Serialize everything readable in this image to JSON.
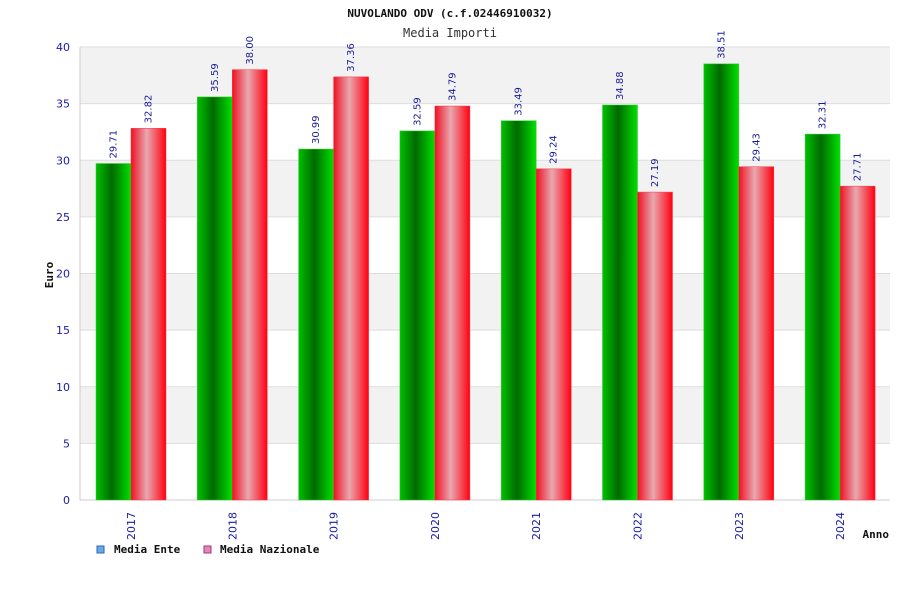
{
  "chart_data": {
    "type": "bar",
    "title": "NUVOLANDO ODV (c.f.02446910032)",
    "subtitle": "Media Importi",
    "xlabel": "Anno",
    "ylabel": "Euro",
    "ylim": [
      0,
      40
    ],
    "yticks": [
      "0",
      "5",
      "10",
      "15",
      "20",
      "25",
      "30",
      "35",
      "40"
    ],
    "grid": true,
    "legend_position": "bottom-left",
    "categories": [
      "2017",
      "2018",
      "2019",
      "2020",
      "2021",
      "2022",
      "2023",
      "2024"
    ],
    "series": [
      {
        "name": "Media Ente",
        "color": "#00cc00",
        "legend_color": "#66aaee",
        "values": [
          29.71,
          35.59,
          30.99,
          32.59,
          33.49,
          34.88,
          38.51,
          32.31
        ],
        "labels": [
          "29.71",
          "35.59",
          "30.99",
          "32.59",
          "33.49",
          "34.88",
          "38.51",
          "32.31"
        ]
      },
      {
        "name": "Media Nazionale",
        "color": "#ee1122",
        "legend_color": "#dd88bb",
        "values": [
          32.82,
          38.0,
          37.36,
          34.79,
          29.24,
          27.19,
          29.43,
          27.71
        ],
        "labels": [
          "32.82",
          "38.00",
          "37.36",
          "34.79",
          "29.24",
          "27.19",
          "29.43",
          "27.71"
        ]
      }
    ]
  }
}
